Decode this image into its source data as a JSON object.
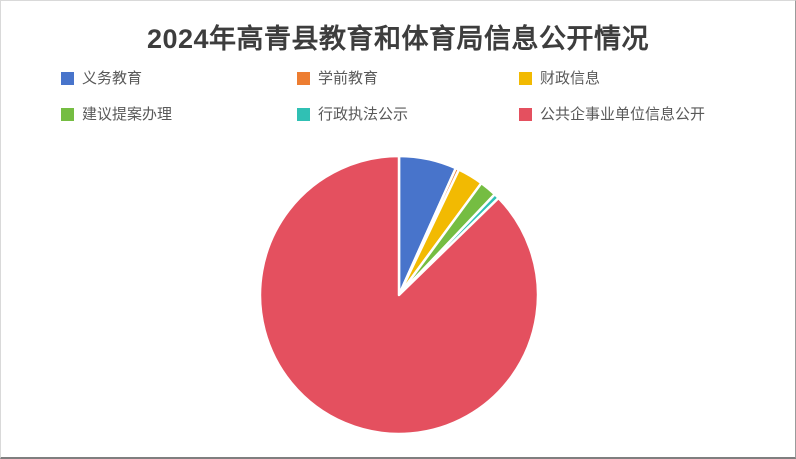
{
  "title": {
    "text": "2024年高青县教育和体育局信息公开情况",
    "color": "#3d3d3d"
  },
  "chart_data": {
    "type": "pie",
    "title": "2024年高青县教育和体育局信息公开情况",
    "categories": [
      "义务教育",
      "学前教育",
      "财政信息",
      "建议提案办理",
      "行政执法公示",
      "公共企事业单位信息公开"
    ],
    "values": [
      6.7,
      0.4,
      3.0,
      2.0,
      0.6,
      87.3
    ],
    "values_unit": "percent_share_estimated_from_arc_angles",
    "colors": [
      "#4874CB",
      "#ED7D31",
      "#F2BA02",
      "#75BD42",
      "#30C0B4",
      "#E4505F"
    ],
    "start_angle": "12-oclock",
    "direction": "clockwise",
    "legend_position": "top",
    "legend_rows": 2,
    "legend_columns": 3,
    "slice_border_color": "#FFFFFF",
    "background_color": "#FFFFFF"
  }
}
